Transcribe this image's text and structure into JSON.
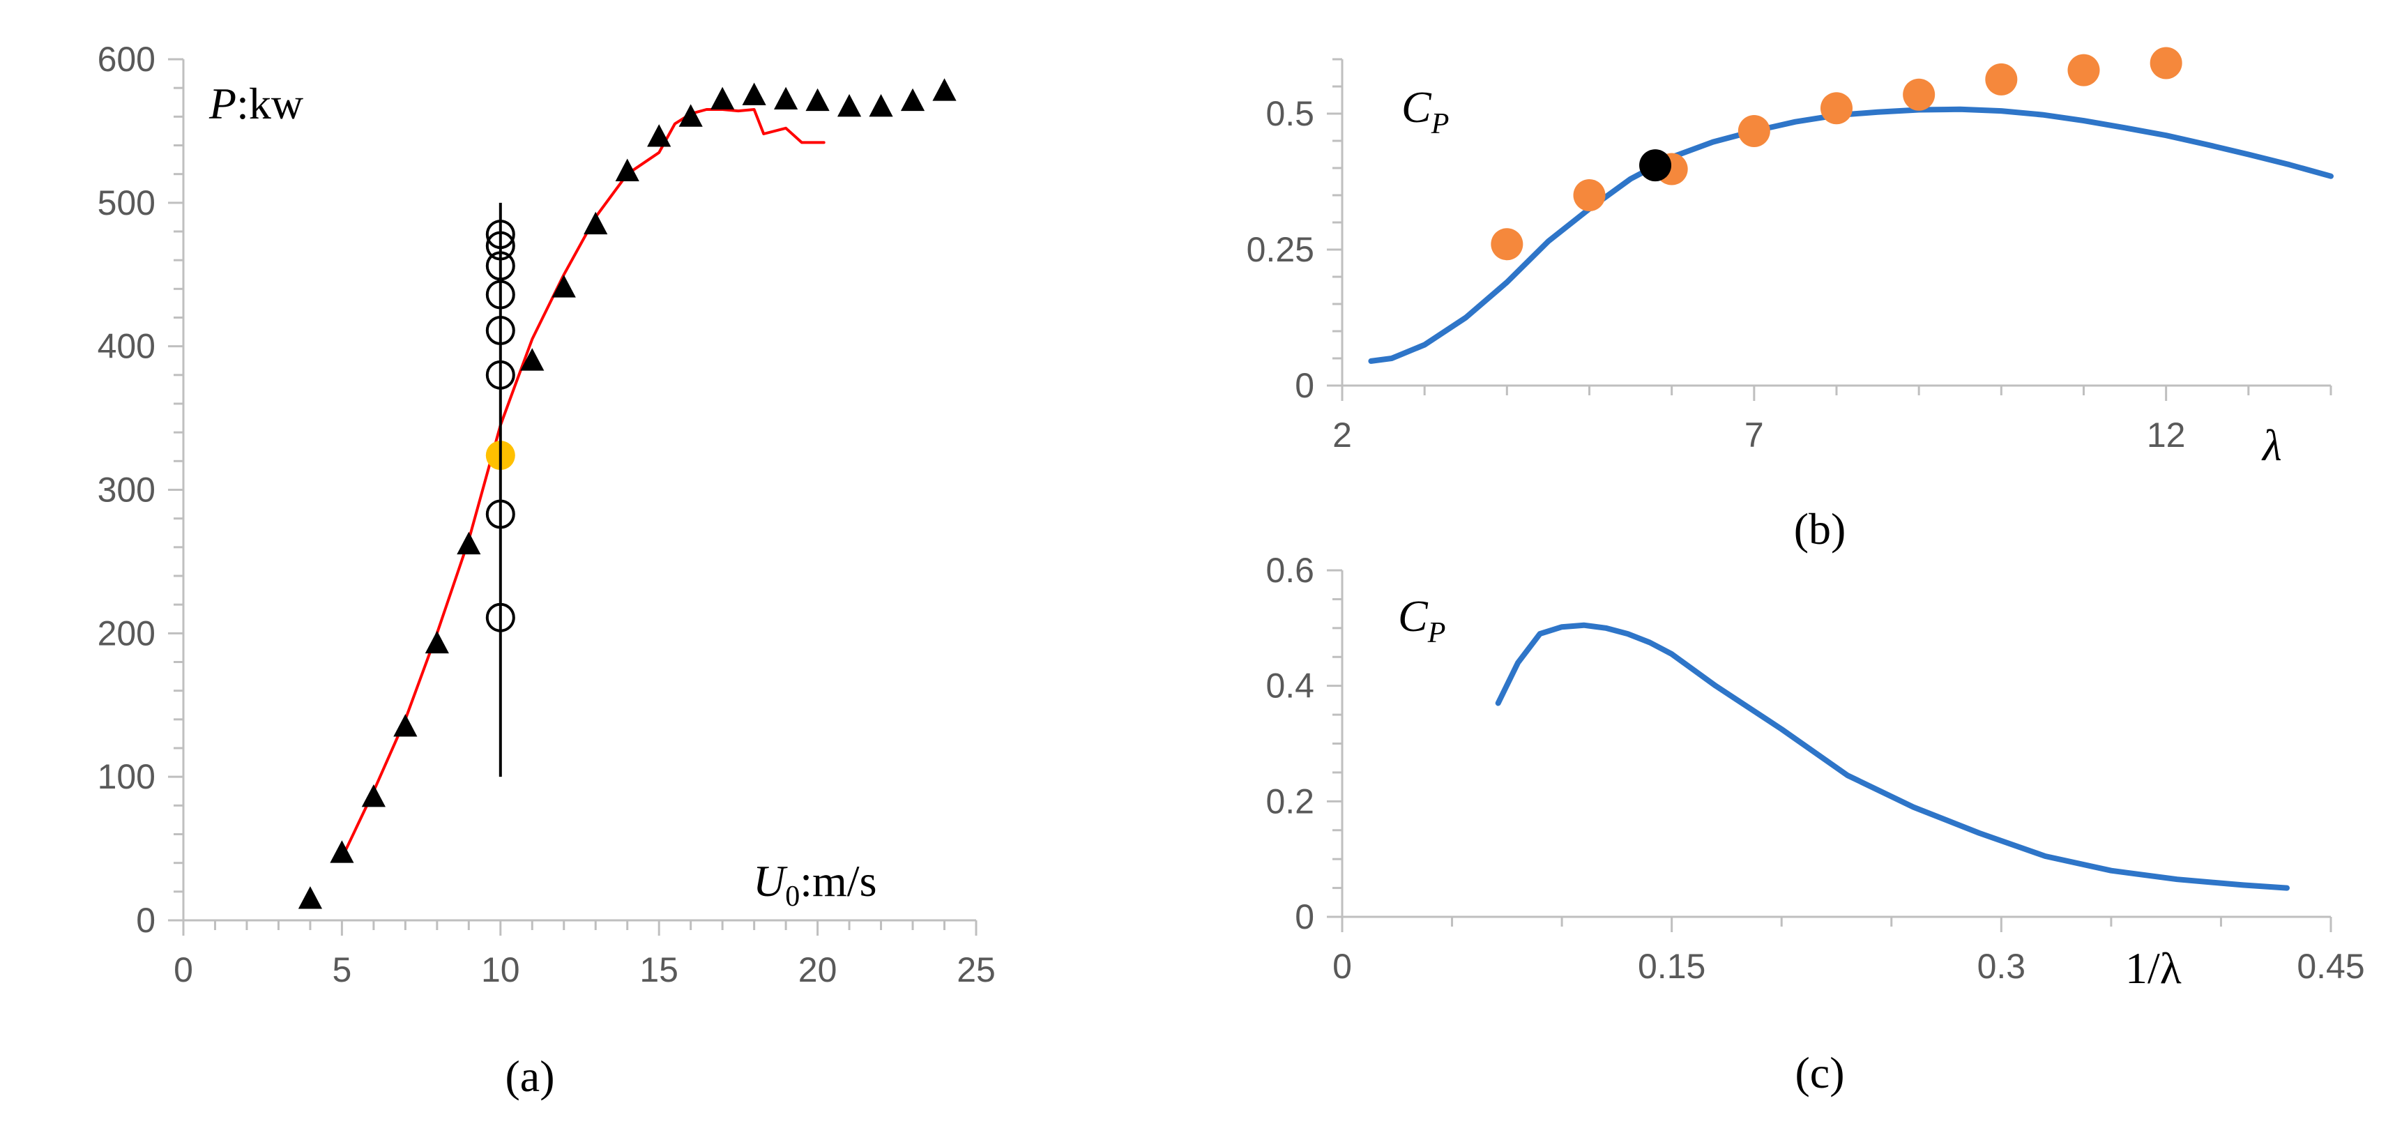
{
  "colors": {
    "axis": "#bfbfbf",
    "tick_text": "#595959",
    "red_line": "#ff0000",
    "blue_line": "#2e75c8",
    "orange": "#f5883c",
    "yellow": "#ffc000",
    "black": "#000000"
  },
  "chart_data": [
    {
      "id": "a",
      "type": "scatter",
      "caption": "(a)",
      "x_label": "U₀:m/s",
      "y_label": "P:kw",
      "xlim": [
        0,
        25
      ],
      "ylim": [
        0,
        600
      ],
      "x_ticks": [
        0,
        5,
        10,
        15,
        20,
        25
      ],
      "y_ticks": [
        0,
        100,
        200,
        300,
        400,
        500,
        600
      ],
      "x_minor": 1,
      "y_minor": 20,
      "series": [
        {
          "name": "measured power curve",
          "kind": "line",
          "color": "#ff0000",
          "x": [
            5.1,
            6.0,
            7.0,
            8.0,
            9.0,
            9.5,
            10.0,
            10.5,
            11.0,
            12.0,
            13.0,
            14.0,
            15.0,
            15.5,
            16.0,
            16.5,
            17.0,
            17.5,
            18.0,
            18.3,
            19.0,
            19.5,
            20.2
          ],
          "y": [
            48,
            90,
            140,
            200,
            265,
            305,
            345,
            375,
            405,
            450,
            490,
            520,
            535,
            555,
            562,
            565,
            565,
            564,
            565,
            548,
            552,
            542,
            542
          ]
        },
        {
          "name": "triangle data",
          "kind": "triangle",
          "color": "#000000",
          "x": [
            4,
            5,
            6,
            7,
            8,
            9,
            11,
            12,
            13,
            14,
            15,
            16,
            17,
            18,
            19,
            20,
            21,
            22,
            23,
            24
          ],
          "y": [
            15,
            47,
            86,
            135,
            193,
            262,
            390,
            441,
            485,
            522,
            546,
            560,
            572,
            575,
            572,
            571,
            567,
            567,
            571,
            578
          ]
        },
        {
          "name": "open circles",
          "kind": "circle-open",
          "color": "#000000",
          "x": [
            10,
            10,
            10,
            10,
            10,
            10,
            10,
            10
          ],
          "y": [
            478,
            470,
            456,
            436,
            411,
            380,
            283,
            211
          ]
        },
        {
          "name": "highlighted point",
          "kind": "circle-filled",
          "color": "#ffc000",
          "x": [
            10
          ],
          "y": [
            324
          ]
        },
        {
          "name": "vertical range",
          "kind": "segment",
          "color": "#000000",
          "x": [
            10,
            10
          ],
          "y": [
            100,
            500
          ]
        }
      ]
    },
    {
      "id": "b",
      "type": "line",
      "caption": "(b)",
      "x_label": "λ",
      "y_label": "C_P",
      "xlim": [
        2,
        14
      ],
      "ylim": [
        0,
        0.6
      ],
      "x_ticks": [
        2,
        7,
        12
      ],
      "y_ticks": [
        0,
        0.25,
        0.5
      ],
      "y_tick_labels": [
        "0",
        "0.25",
        "0.5"
      ],
      "x_minor": 1,
      "y_minor": 0.05,
      "series": [
        {
          "name": "Cp curve",
          "kind": "line",
          "color": "#2e75c8",
          "x": [
            2.35,
            2.6,
            3.0,
            3.5,
            4.0,
            4.5,
            5.0,
            5.5,
            6.0,
            6.5,
            7.0,
            7.5,
            8.0,
            8.5,
            9.0,
            9.5,
            10.0,
            10.5,
            11.0,
            11.5,
            12.0,
            12.5,
            13.0,
            13.5,
            14.0
          ],
          "y": [
            0.045,
            0.05,
            0.075,
            0.125,
            0.19,
            0.265,
            0.325,
            0.38,
            0.42,
            0.448,
            0.468,
            0.485,
            0.497,
            0.503,
            0.507,
            0.508,
            0.505,
            0.498,
            0.487,
            0.474,
            0.46,
            0.443,
            0.425,
            0.406,
            0.385
          ]
        },
        {
          "name": "orange points",
          "kind": "circle-filled",
          "color": "#f5883c",
          "x": [
            4,
            5,
            6,
            7,
            8,
            9,
            10,
            11,
            12
          ],
          "y": [
            0.26,
            0.35,
            0.398,
            0.468,
            0.51,
            0.535,
            0.563,
            0.58,
            0.593
          ]
        },
        {
          "name": "black point",
          "kind": "circle-filled",
          "color": "#000000",
          "x": [
            5.8
          ],
          "y": [
            0.405
          ]
        }
      ]
    },
    {
      "id": "c",
      "type": "line",
      "caption": "(c)",
      "x_label": "1/λ",
      "y_label": "C_P",
      "xlim": [
        0,
        0.45
      ],
      "ylim": [
        0,
        0.6
      ],
      "x_ticks": [
        0,
        0.15,
        0.3,
        0.45
      ],
      "x_tick_labels": [
        "0",
        "0.15",
        "0.3",
        "0.45"
      ],
      "y_ticks": [
        0,
        0.2,
        0.4,
        0.6
      ],
      "y_tick_labels": [
        "0",
        "0.2",
        "0.4",
        "0.6"
      ],
      "x_minor": 0.05,
      "y_minor": 0.05,
      "series": [
        {
          "name": "Cp vs 1/lambda",
          "kind": "line",
          "color": "#2e75c8",
          "x": [
            0.071,
            0.08,
            0.09,
            0.1,
            0.11,
            0.12,
            0.13,
            0.14,
            0.15,
            0.17,
            0.2,
            0.23,
            0.26,
            0.29,
            0.32,
            0.35,
            0.38,
            0.41,
            0.43
          ],
          "y": [
            0.37,
            0.44,
            0.49,
            0.502,
            0.505,
            0.5,
            0.49,
            0.475,
            0.455,
            0.4,
            0.325,
            0.245,
            0.19,
            0.145,
            0.105,
            0.08,
            0.065,
            0.055,
            0.05
          ]
        }
      ]
    }
  ]
}
